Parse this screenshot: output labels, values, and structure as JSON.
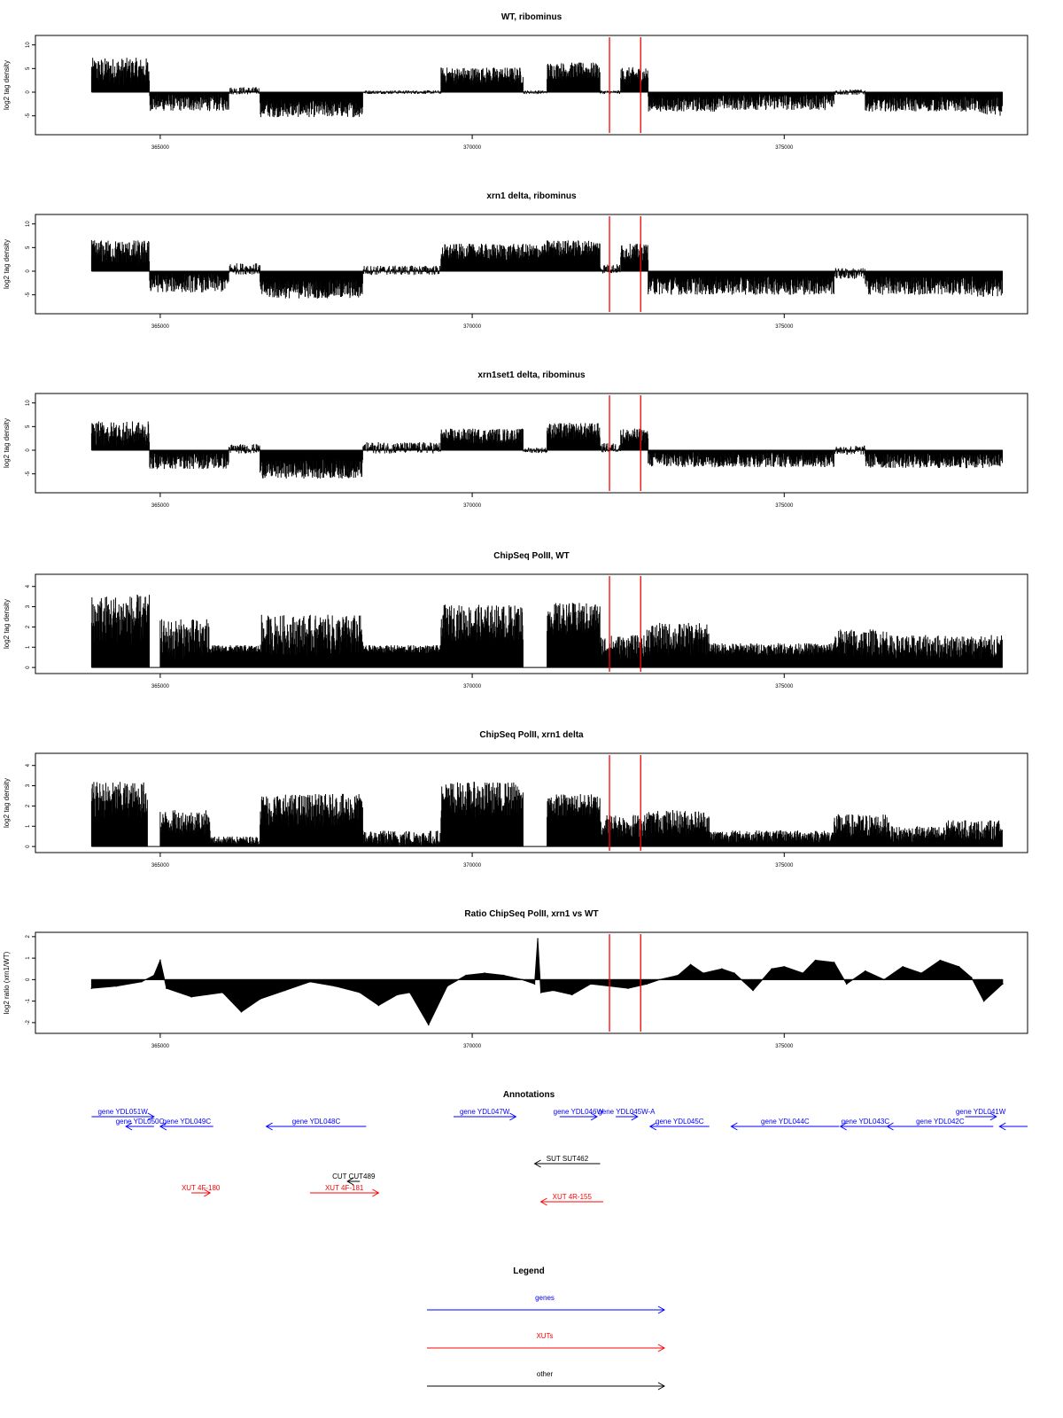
{
  "chart_data": [
    {
      "type": "bar",
      "title": "WT, ribominus",
      "ylabel": "log2 tag density",
      "xlim": [
        363000,
        378900
      ],
      "ylim": [
        -9,
        12
      ],
      "x_ticks": [
        365000,
        370000,
        375000
      ],
      "y_ticks": [
        -5,
        0,
        5,
        10
      ],
      "red_markers": [
        372200,
        372700
      ],
      "segments": [
        {
          "start": 363900,
          "end": 364830,
          "mean": 4.5,
          "spread": 2.8
        },
        {
          "start": 364830,
          "end": 366100,
          "mean": -2.2,
          "spread": 1.8
        },
        {
          "start": 366100,
          "end": 366600,
          "mean": 0.3,
          "spread": 0.8
        },
        {
          "start": 366600,
          "end": 368250,
          "mean": -3.5,
          "spread": 1.8
        },
        {
          "start": 368250,
          "end": 369500,
          "mean": 0.0,
          "spread": 0.4
        },
        {
          "start": 369500,
          "end": 370820,
          "mean": 3.5,
          "spread": 1.8
        },
        {
          "start": 370820,
          "end": 371200,
          "mean": 0.0,
          "spread": 0.4
        },
        {
          "start": 371200,
          "end": 372050,
          "mean": 4.5,
          "spread": 1.8
        },
        {
          "start": 372050,
          "end": 372380,
          "mean": 0.0,
          "spread": 0.4
        },
        {
          "start": 372380,
          "end": 372820,
          "mean": 3.5,
          "spread": 1.8
        },
        {
          "start": 372820,
          "end": 373900,
          "mean": -2.5,
          "spread": 1.6
        },
        {
          "start": 373900,
          "end": 375800,
          "mean": -2.0,
          "spread": 1.8
        },
        {
          "start": 375800,
          "end": 376300,
          "mean": 0.0,
          "spread": 0.6
        },
        {
          "start": 376300,
          "end": 378100,
          "mean": -2.5,
          "spread": 1.6
        },
        {
          "start": 378100,
          "end": 378500,
          "mean": -3.0,
          "spread": 2.0
        }
      ]
    },
    {
      "type": "bar",
      "title": "xrn1 delta, ribominus",
      "ylabel": "log2 tag density",
      "xlim": [
        363000,
        378900
      ],
      "ylim": [
        -9,
        12
      ],
      "x_ticks": [
        365000,
        370000,
        375000
      ],
      "y_ticks": [
        -5,
        0,
        5,
        10
      ],
      "red_markers": [
        372200,
        372700
      ],
      "segments": [
        {
          "start": 363900,
          "end": 364830,
          "mean": 4.0,
          "spread": 2.6
        },
        {
          "start": 364830,
          "end": 366100,
          "mean": -2.5,
          "spread": 2.0
        },
        {
          "start": 366100,
          "end": 366600,
          "mean": 0.5,
          "spread": 1.2
        },
        {
          "start": 366600,
          "end": 368250,
          "mean": -3.8,
          "spread": 2.0
        },
        {
          "start": 368250,
          "end": 369500,
          "mean": 0.2,
          "spread": 1.0
        },
        {
          "start": 369500,
          "end": 371200,
          "mean": 4.0,
          "spread": 1.8
        },
        {
          "start": 371200,
          "end": 372050,
          "mean": 4.8,
          "spread": 1.8
        },
        {
          "start": 372050,
          "end": 372380,
          "mean": 0.5,
          "spread": 1.0
        },
        {
          "start": 372380,
          "end": 372820,
          "mean": 4.0,
          "spread": 1.8
        },
        {
          "start": 372820,
          "end": 375800,
          "mean": -3.0,
          "spread": 2.0
        },
        {
          "start": 375800,
          "end": 376300,
          "mean": -0.5,
          "spread": 1.2
        },
        {
          "start": 376300,
          "end": 378100,
          "mean": -3.0,
          "spread": 2.0
        },
        {
          "start": 378100,
          "end": 378500,
          "mean": -3.5,
          "spread": 2.0
        }
      ]
    },
    {
      "type": "bar",
      "title": "xrn1set1 delta, ribominus",
      "ylabel": "log2 tag density",
      "xlim": [
        363000,
        378900
      ],
      "ylim": [
        -9,
        12
      ],
      "x_ticks": [
        365000,
        370000,
        375000
      ],
      "y_ticks": [
        -5,
        0,
        5,
        10
      ],
      "red_markers": [
        372200,
        372700
      ],
      "segments": [
        {
          "start": 363900,
          "end": 364830,
          "mean": 3.5,
          "spread": 2.6
        },
        {
          "start": 364830,
          "end": 366100,
          "mean": -2.2,
          "spread": 1.8
        },
        {
          "start": 366100,
          "end": 366600,
          "mean": 0.3,
          "spread": 1.0
        },
        {
          "start": 366600,
          "end": 368250,
          "mean": -4.0,
          "spread": 2.0
        },
        {
          "start": 368250,
          "end": 369500,
          "mean": 0.5,
          "spread": 1.2
        },
        {
          "start": 369500,
          "end": 370820,
          "mean": 3.0,
          "spread": 1.6
        },
        {
          "start": 370820,
          "end": 371200,
          "mean": 0.0,
          "spread": 0.6
        },
        {
          "start": 371200,
          "end": 372050,
          "mean": 4.0,
          "spread": 1.8
        },
        {
          "start": 372050,
          "end": 372380,
          "mean": 0.5,
          "spread": 1.0
        },
        {
          "start": 372380,
          "end": 372820,
          "mean": 3.0,
          "spread": 1.6
        },
        {
          "start": 372820,
          "end": 375800,
          "mean": -2.0,
          "spread": 1.6
        },
        {
          "start": 375800,
          "end": 376300,
          "mean": 0.0,
          "spread": 1.0
        },
        {
          "start": 376300,
          "end": 378500,
          "mean": -2.2,
          "spread": 1.6
        }
      ]
    },
    {
      "type": "bar",
      "title": "ChipSeq PolII, WT",
      "ylabel": "log2 tag density",
      "xlim": [
        363000,
        378900
      ],
      "ylim": [
        -0.3,
        4.6
      ],
      "x_ticks": [
        365000,
        370000,
        375000
      ],
      "y_ticks": [
        0,
        1,
        2,
        3,
        4
      ],
      "red_markers": [
        372200,
        372700
      ],
      "segments": [
        {
          "start": 363900,
          "end": 364830,
          "mean": 2.4,
          "spread": 1.2
        },
        {
          "start": 364830,
          "end": 365000,
          "mean": 0.0,
          "spread": 0.0
        },
        {
          "start": 365000,
          "end": 365800,
          "mean": 1.4,
          "spread": 1.0
        },
        {
          "start": 365800,
          "end": 366600,
          "mean": 0.9,
          "spread": 0.2
        },
        {
          "start": 366600,
          "end": 368250,
          "mean": 1.6,
          "spread": 1.0
        },
        {
          "start": 368250,
          "end": 369500,
          "mean": 0.9,
          "spread": 0.2
        },
        {
          "start": 369500,
          "end": 370820,
          "mean": 2.2,
          "spread": 0.9
        },
        {
          "start": 370820,
          "end": 371200,
          "mean": 0.0,
          "spread": 0.0
        },
        {
          "start": 371200,
          "end": 372050,
          "mean": 2.4,
          "spread": 0.8
        },
        {
          "start": 372050,
          "end": 372800,
          "mean": 1.0,
          "spread": 0.6
        },
        {
          "start": 372800,
          "end": 373800,
          "mean": 1.4,
          "spread": 0.8
        },
        {
          "start": 373800,
          "end": 375800,
          "mean": 0.9,
          "spread": 0.3
        },
        {
          "start": 375800,
          "end": 376700,
          "mean": 1.2,
          "spread": 0.7
        },
        {
          "start": 376700,
          "end": 377600,
          "mean": 1.0,
          "spread": 0.6
        },
        {
          "start": 377600,
          "end": 378500,
          "mean": 1.0,
          "spread": 0.6
        }
      ]
    },
    {
      "type": "bar",
      "title": "ChipSeq PolII, xrn1 delta",
      "ylabel": "log2 tag density",
      "xlim": [
        363000,
        378900
      ],
      "ylim": [
        -0.3,
        4.6
      ],
      "x_ticks": [
        365000,
        370000,
        375000
      ],
      "y_ticks": [
        0,
        1,
        2,
        3,
        4
      ],
      "red_markers": [
        372200,
        372700
      ],
      "segments": [
        {
          "start": 363900,
          "end": 364800,
          "mean": 2.3,
          "spread": 0.9
        },
        {
          "start": 364800,
          "end": 365000,
          "mean": 0.0,
          "spread": 0.0
        },
        {
          "start": 365000,
          "end": 365800,
          "mean": 1.2,
          "spread": 0.6
        },
        {
          "start": 365800,
          "end": 366600,
          "mean": 0.3,
          "spread": 0.2
        },
        {
          "start": 366600,
          "end": 368250,
          "mean": 1.8,
          "spread": 0.8
        },
        {
          "start": 368250,
          "end": 369500,
          "mean": 0.4,
          "spread": 0.4
        },
        {
          "start": 369500,
          "end": 370820,
          "mean": 2.3,
          "spread": 0.9
        },
        {
          "start": 370820,
          "end": 371200,
          "mean": 0.0,
          "spread": 0.0
        },
        {
          "start": 371200,
          "end": 372050,
          "mean": 2.0,
          "spread": 0.6
        },
        {
          "start": 372050,
          "end": 372800,
          "mean": 1.0,
          "spread": 0.6
        },
        {
          "start": 372800,
          "end": 373800,
          "mean": 1.2,
          "spread": 0.6
        },
        {
          "start": 373800,
          "end": 375800,
          "mean": 0.5,
          "spread": 0.3
        },
        {
          "start": 375800,
          "end": 376700,
          "mean": 1.0,
          "spread": 0.6
        },
        {
          "start": 376700,
          "end": 377600,
          "mean": 0.6,
          "spread": 0.4
        },
        {
          "start": 377600,
          "end": 378500,
          "mean": 0.8,
          "spread": 0.5
        }
      ]
    },
    {
      "type": "area",
      "title": "Ratio ChipSeq PolII, xrn1 vs WT",
      "ylabel": "log2 ratio (xrn1/WT)",
      "xlim": [
        363000,
        378900
      ],
      "ylim": [
        -2.5,
        2.2
      ],
      "x_ticks": [
        365000,
        370000,
        375000
      ],
      "y_ticks": [
        -2,
        -1,
        0,
        1,
        2
      ],
      "red_markers": [
        372200,
        372700
      ],
      "x": [
        363900,
        364300,
        364700,
        364900,
        365000,
        365100,
        365500,
        366000,
        366300,
        366600,
        367000,
        367400,
        367800,
        368200,
        368500,
        368800,
        369000,
        369300,
        369600,
        369900,
        370200,
        370500,
        370800,
        371000,
        371050,
        371100,
        371300,
        371600,
        371900,
        372200,
        372500,
        372800,
        373000,
        373300,
        373500,
        373700,
        374000,
        374200,
        374500,
        374800,
        375000,
        375300,
        375500,
        375800,
        376000,
        376300,
        376600,
        376900,
        377200,
        377500,
        377800,
        378000,
        378200,
        378500
      ],
      "y": [
        -0.4,
        -0.3,
        -0.1,
        0.2,
        0.9,
        -0.4,
        -0.8,
        -0.6,
        -1.5,
        -0.9,
        -0.5,
        -0.1,
        -0.3,
        -0.6,
        -1.2,
        -0.7,
        -0.6,
        -2.1,
        -0.3,
        0.2,
        0.3,
        0.2,
        0.0,
        -0.2,
        1.9,
        -0.6,
        -0.5,
        -0.7,
        -0.2,
        -0.3,
        -0.4,
        -0.2,
        0.0,
        0.2,
        0.7,
        0.3,
        0.5,
        0.3,
        -0.5,
        0.5,
        0.6,
        0.3,
        0.9,
        0.8,
        -0.2,
        0.4,
        0.0,
        0.6,
        0.3,
        0.9,
        0.6,
        0.1,
        -1.0,
        -0.2
      ]
    }
  ],
  "annotations": {
    "title": "Annotations",
    "genes": [
      {
        "label": "gene YDL051W",
        "x0": 363900,
        "x1": 364900,
        "row": 0,
        "dir": "right"
      },
      {
        "label": "gene YDL050C",
        "x0": 364450,
        "x1": 364900,
        "row": 1,
        "dir": "left"
      },
      {
        "label": "gene YDL049C",
        "x0": 365000,
        "x1": 365850,
        "row": 1,
        "dir": "left"
      },
      {
        "label": "gene YDL048C",
        "x0": 366700,
        "x1": 368300,
        "row": 1,
        "dir": "left"
      },
      {
        "label": "gene YDL047W",
        "x0": 369700,
        "x1": 370700,
        "row": 0,
        "dir": "right"
      },
      {
        "label": "gene YDL046W",
        "x0": 371400,
        "x1": 372000,
        "row": 0,
        "dir": "right"
      },
      {
        "label": "gene YDL045W-A",
        "x0": 372300,
        "x1": 372650,
        "row": 0,
        "dir": "right"
      },
      {
        "label": "gene YDL045C",
        "x0": 372850,
        "x1": 373800,
        "row": 1,
        "dir": "left"
      },
      {
        "label": "gene YDL044C",
        "x0": 374150,
        "x1": 375880,
        "row": 1,
        "dir": "left"
      },
      {
        "label": "gene YDL043C",
        "x0": 375900,
        "x1": 376700,
        "row": 1,
        "dir": "left"
      },
      {
        "label": "gene YDL042C",
        "x0": 376650,
        "x1": 378350,
        "row": 1,
        "dir": "left"
      },
      {
        "label": "gene YDL041W",
        "x0": 377900,
        "x1": 378400,
        "row": 0,
        "dir": "right"
      },
      {
        "label": "",
        "x0": 378450,
        "x1": 378900,
        "row": 1,
        "dir": "left"
      }
    ],
    "others": [
      {
        "label": "CUT CUT489",
        "x0": 368000,
        "x1": 368200,
        "row": 3,
        "dir": "left"
      },
      {
        "label": "SUT SUT462",
        "x0": 371000,
        "x1": 372050,
        "row": 2,
        "dir": "left"
      }
    ],
    "xuts": [
      {
        "label": "XUT 4F-180",
        "x0": 365500,
        "x1": 365800,
        "row": 4,
        "dir": "right"
      },
      {
        "label": "XUT 4F-181",
        "x0": 367400,
        "x1": 368500,
        "row": 4,
        "dir": "right"
      },
      {
        "label": "XUT 4R-155",
        "x0": 371100,
        "x1": 372100,
        "row": 5,
        "dir": "left"
      }
    ]
  },
  "legend": {
    "title": "Legend",
    "items": [
      {
        "label": "genes",
        "color": "#0000ff"
      },
      {
        "label": "XUTs",
        "color": "#ff0000"
      },
      {
        "label": "other",
        "color": "#000000"
      }
    ]
  },
  "colors": {
    "genes": "#0000ff",
    "xuts": "#ff0000",
    "other": "#000000",
    "marker": "#ff0000"
  }
}
